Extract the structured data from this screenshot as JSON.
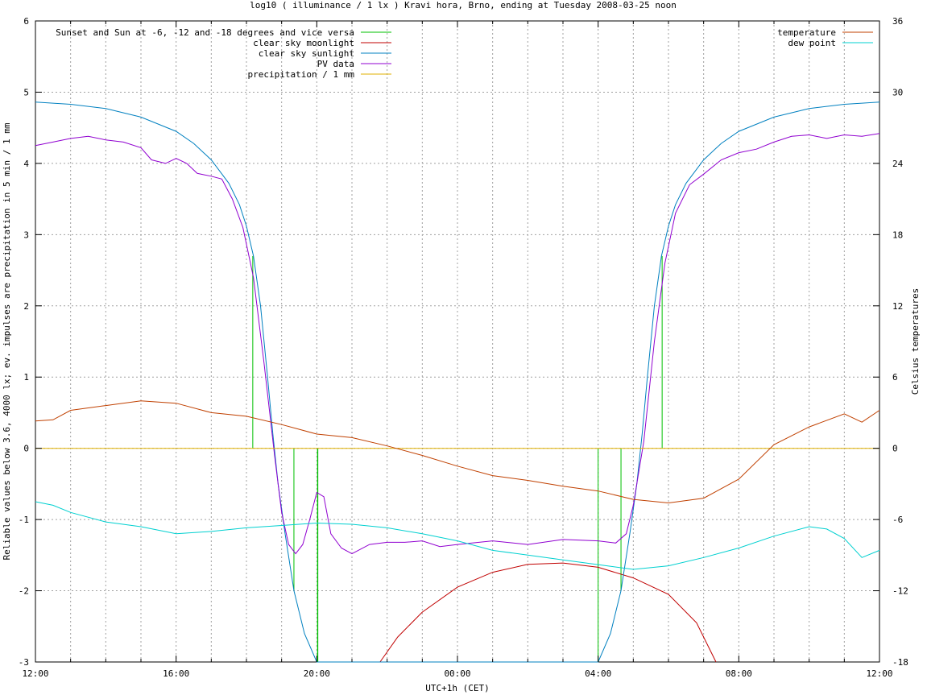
{
  "chart_data": {
    "type": "line",
    "title": "log10 ( illuminance / 1 lx ) Kravi hora, Brno, ending at Tuesday 2008-03-25 noon",
    "xlabel": "UTC+1h (CET)",
    "ylabel_left": "Reliable values below 3.6, 4000 lx; ev. impulses are precipitation in 5 min / 1 mm",
    "ylabel_right": "Celsius temperatures",
    "x_ticks": [
      "12:00",
      "16:00",
      "20:00",
      "00:00",
      "04:00",
      "08:00",
      "12:00"
    ],
    "x_range_hours": [
      12,
      36
    ],
    "y_left_range": [
      -3,
      6
    ],
    "y_left_ticks": [
      "-3",
      "-2",
      "-1",
      "0",
      "1",
      "2",
      "3",
      "4",
      "5",
      "6"
    ],
    "y_right_range": [
      -18,
      36
    ],
    "y_right_ticks": [
      "-18",
      "-12",
      "-6",
      "0",
      "6",
      "12",
      "18",
      "24",
      "30",
      "36"
    ],
    "grid": true,
    "legend_left_placement": "top-left",
    "legend_right_placement": "top-right",
    "series": [
      {
        "name": "Sunset and Sun at -6, -12 and -18 degrees and vice versa",
        "kind": "impulse",
        "axis": "left",
        "color": "#00c000",
        "points": [
          [
            18.18,
            2.7
          ],
          [
            18.68,
            0
          ],
          [
            19.35,
            -2.0
          ],
          [
            20.02,
            -3.0
          ],
          [
            20.03,
            -3.0
          ],
          [
            28.0,
            -3.0
          ],
          [
            28.65,
            -2.0
          ],
          [
            29.32,
            0
          ],
          [
            29.82,
            2.7
          ]
        ]
      },
      {
        "name": "clear sky moonlight",
        "kind": "line",
        "axis": "left",
        "color": "#c00000",
        "points": [
          [
            21.8,
            -3.0
          ],
          [
            22.3,
            -2.65
          ],
          [
            23.0,
            -2.3
          ],
          [
            24.0,
            -1.95
          ],
          [
            25.0,
            -1.74
          ],
          [
            26.0,
            -1.63
          ],
          [
            27.0,
            -1.61
          ],
          [
            28.0,
            -1.67
          ],
          [
            29.0,
            -1.82
          ],
          [
            30.0,
            -2.05
          ],
          [
            30.8,
            -2.45
          ],
          [
            31.35,
            -3.0
          ]
        ]
      },
      {
        "name": "clear sky sunlight",
        "kind": "line",
        "axis": "left",
        "color": "#0080c0",
        "points": [
          [
            12.0,
            4.86
          ],
          [
            13.0,
            4.83
          ],
          [
            14.0,
            4.77
          ],
          [
            15.0,
            4.65
          ],
          [
            16.0,
            4.45
          ],
          [
            16.5,
            4.28
          ],
          [
            17.0,
            4.05
          ],
          [
            17.5,
            3.72
          ],
          [
            17.8,
            3.42
          ],
          [
            18.0,
            3.12
          ],
          [
            18.2,
            2.7
          ],
          [
            18.4,
            2.0
          ],
          [
            18.6,
            1.0
          ],
          [
            18.75,
            0.2
          ],
          [
            18.9,
            -0.5
          ],
          [
            19.1,
            -1.2
          ],
          [
            19.35,
            -2.0
          ],
          [
            19.65,
            -2.6
          ],
          [
            20.0,
            -3.0
          ],
          [
            28.0,
            -3.0
          ],
          [
            28.35,
            -2.6
          ],
          [
            28.65,
            -2.0
          ],
          [
            28.9,
            -1.2
          ],
          [
            29.1,
            -0.5
          ],
          [
            29.25,
            0.2
          ],
          [
            29.4,
            1.0
          ],
          [
            29.6,
            2.0
          ],
          [
            29.8,
            2.7
          ],
          [
            30.0,
            3.12
          ],
          [
            30.2,
            3.42
          ],
          [
            30.5,
            3.72
          ],
          [
            31.0,
            4.05
          ],
          [
            31.5,
            4.28
          ],
          [
            32.0,
            4.45
          ],
          [
            33.0,
            4.65
          ],
          [
            34.0,
            4.77
          ],
          [
            35.0,
            4.83
          ],
          [
            36.0,
            4.86
          ]
        ]
      },
      {
        "name": "PV data",
        "kind": "line",
        "axis": "left",
        "color": "#9000d0",
        "points": [
          [
            12.0,
            4.25
          ],
          [
            12.5,
            4.3
          ],
          [
            13.0,
            4.35
          ],
          [
            13.5,
            4.38
          ],
          [
            14.0,
            4.33
          ],
          [
            14.5,
            4.3
          ],
          [
            15.0,
            4.22
          ],
          [
            15.3,
            4.05
          ],
          [
            15.7,
            4.0
          ],
          [
            16.0,
            4.07
          ],
          [
            16.3,
            4.0
          ],
          [
            16.6,
            3.86
          ],
          [
            17.0,
            3.82
          ],
          [
            17.3,
            3.78
          ],
          [
            17.6,
            3.5
          ],
          [
            17.9,
            3.1
          ],
          [
            18.2,
            2.4
          ],
          [
            18.5,
            1.2
          ],
          [
            18.8,
            -0.1
          ],
          [
            19.0,
            -0.9
          ],
          [
            19.2,
            -1.35
          ],
          [
            19.4,
            -1.48
          ],
          [
            19.6,
            -1.35
          ],
          [
            19.8,
            -1.0
          ],
          [
            20.0,
            -0.62
          ],
          [
            20.2,
            -0.68
          ],
          [
            20.4,
            -1.2
          ],
          [
            20.7,
            -1.4
          ],
          [
            21.0,
            -1.48
          ],
          [
            21.5,
            -1.35
          ],
          [
            22.0,
            -1.32
          ],
          [
            22.5,
            -1.32
          ],
          [
            23.0,
            -1.3
          ],
          [
            23.5,
            -1.38
          ],
          [
            24.0,
            -1.35
          ],
          [
            25.0,
            -1.3
          ],
          [
            26.0,
            -1.35
          ],
          [
            27.0,
            -1.28
          ],
          [
            28.0,
            -1.3
          ],
          [
            28.5,
            -1.33
          ],
          [
            28.8,
            -1.2
          ],
          [
            29.0,
            -0.8
          ],
          [
            29.3,
            0.1
          ],
          [
            29.6,
            1.5
          ],
          [
            29.9,
            2.6
          ],
          [
            30.2,
            3.3
          ],
          [
            30.6,
            3.7
          ],
          [
            31.0,
            3.85
          ],
          [
            31.5,
            4.05
          ],
          [
            32.0,
            4.15
          ],
          [
            32.5,
            4.2
          ],
          [
            33.0,
            4.3
          ],
          [
            33.5,
            4.38
          ],
          [
            34.0,
            4.4
          ],
          [
            34.5,
            4.35
          ],
          [
            35.0,
            4.4
          ],
          [
            35.5,
            4.38
          ],
          [
            36.0,
            4.42
          ]
        ]
      },
      {
        "name": "precipitation / 1 mm",
        "kind": "line",
        "axis": "left",
        "color": "#e0b000",
        "points": [
          [
            12.0,
            0.0
          ],
          [
            36.0,
            0.0
          ]
        ]
      },
      {
        "name": "temperature",
        "kind": "line",
        "axis": "right",
        "color": "#c04000",
        "points": [
          [
            12.0,
            2.3
          ],
          [
            12.5,
            2.4
          ],
          [
            13.0,
            3.2
          ],
          [
            14.0,
            3.6
          ],
          [
            15.0,
            4.0
          ],
          [
            16.0,
            3.8
          ],
          [
            17.0,
            3.0
          ],
          [
            18.0,
            2.7
          ],
          [
            19.0,
            2.0
          ],
          [
            20.0,
            1.2
          ],
          [
            21.0,
            0.9
          ],
          [
            22.0,
            0.2
          ],
          [
            23.0,
            -0.6
          ],
          [
            24.0,
            -1.5
          ],
          [
            25.0,
            -2.3
          ],
          [
            26.0,
            -2.7
          ],
          [
            27.0,
            -3.2
          ],
          [
            28.0,
            -3.6
          ],
          [
            29.0,
            -4.3
          ],
          [
            30.0,
            -4.6
          ],
          [
            31.0,
            -4.2
          ],
          [
            32.0,
            -2.6
          ],
          [
            33.0,
            0.3
          ],
          [
            34.0,
            1.8
          ],
          [
            35.0,
            2.9
          ],
          [
            35.5,
            2.2
          ],
          [
            36.0,
            3.2
          ]
        ]
      },
      {
        "name": "dew point",
        "kind": "line",
        "axis": "right",
        "color": "#00d0d0",
        "points": [
          [
            12.0,
            -4.5
          ],
          [
            12.5,
            -4.8
          ],
          [
            13.0,
            -5.4
          ],
          [
            14.0,
            -6.2
          ],
          [
            15.0,
            -6.6
          ],
          [
            16.0,
            -7.2
          ],
          [
            17.0,
            -7.0
          ],
          [
            18.0,
            -6.7
          ],
          [
            19.0,
            -6.5
          ],
          [
            20.0,
            -6.3
          ],
          [
            21.0,
            -6.4
          ],
          [
            22.0,
            -6.7
          ],
          [
            23.0,
            -7.2
          ],
          [
            24.0,
            -7.8
          ],
          [
            25.0,
            -8.6
          ],
          [
            26.0,
            -9.0
          ],
          [
            27.0,
            -9.4
          ],
          [
            28.0,
            -9.8
          ],
          [
            29.0,
            -10.2
          ],
          [
            30.0,
            -9.9
          ],
          [
            31.0,
            -9.2
          ],
          [
            32.0,
            -8.4
          ],
          [
            33.0,
            -7.4
          ],
          [
            34.0,
            -6.6
          ],
          [
            34.5,
            -6.8
          ],
          [
            35.0,
            -7.6
          ],
          [
            35.5,
            -9.2
          ],
          [
            36.0,
            -8.6
          ]
        ]
      }
    ]
  }
}
